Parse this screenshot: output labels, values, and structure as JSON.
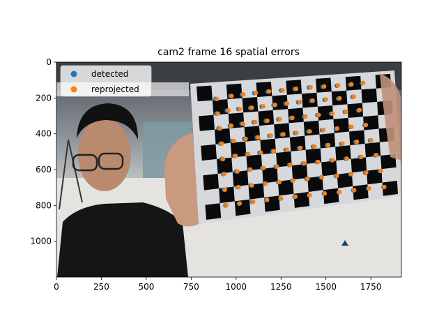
{
  "chart_data": {
    "type": "scatter",
    "title": "cam2 frame 16 spatial errors",
    "xlabel": "",
    "ylabel": "",
    "xlim": [
      0,
      1920
    ],
    "ylim": [
      1200,
      0
    ],
    "xticks": [
      0,
      250,
      500,
      750,
      1000,
      1250,
      1500,
      1750
    ],
    "yticks": [
      0,
      200,
      400,
      600,
      800,
      1000
    ],
    "legend_position": "upper-left",
    "grid": false,
    "background_image": "photo of a person holding a black-and-white checkerboard calibration target",
    "series": [
      {
        "name": "detected",
        "color": "#1f77b4",
        "points": [
          [
            885,
            205
          ],
          [
            967,
            189
          ],
          [
            1032,
            181
          ],
          [
            1100,
            173
          ],
          [
            1175,
            165
          ],
          [
            1250,
            158
          ],
          [
            1325,
            150
          ],
          [
            1405,
            142
          ],
          [
            1482,
            138
          ],
          [
            1560,
            132
          ],
          [
            1635,
            126
          ],
          [
            1700,
            118
          ],
          [
            890,
            287
          ],
          [
            948,
            270
          ],
          [
            1012,
            262
          ],
          [
            1078,
            256
          ],
          [
            1142,
            248
          ],
          [
            1208,
            240
          ],
          [
            1275,
            232
          ],
          [
            1345,
            224
          ],
          [
            1418,
            216
          ],
          [
            1492,
            210
          ],
          [
            1568,
            204
          ],
          [
            1648,
            194
          ],
          [
            902,
            370
          ],
          [
            965,
            355
          ],
          [
            1030,
            344
          ],
          [
            1098,
            336
          ],
          [
            1165,
            328
          ],
          [
            1235,
            320
          ],
          [
            1305,
            312
          ],
          [
            1378,
            304
          ],
          [
            1452,
            296
          ],
          [
            1528,
            288
          ],
          [
            1605,
            278
          ],
          [
            1680,
            270
          ],
          [
            912,
            455
          ],
          [
            978,
            440
          ],
          [
            1045,
            428
          ],
          [
            1115,
            420
          ],
          [
            1185,
            412
          ],
          [
            1255,
            404
          ],
          [
            1328,
            396
          ],
          [
            1402,
            388
          ],
          [
            1478,
            380
          ],
          [
            1555,
            372
          ],
          [
            1635,
            362
          ],
          [
            1715,
            352
          ],
          [
            920,
            540
          ],
          [
            990,
            524
          ],
          [
            1060,
            514
          ],
          [
            1130,
            506
          ],
          [
            1202,
            498
          ],
          [
            1275,
            490
          ],
          [
            1350,
            480
          ],
          [
            1428,
            472
          ],
          [
            1505,
            464
          ],
          [
            1585,
            456
          ],
          [
            1665,
            446
          ],
          [
            1745,
            438
          ],
          [
            928,
            625
          ],
          [
            1000,
            610
          ],
          [
            1072,
            600
          ],
          [
            1145,
            592
          ],
          [
            1220,
            584
          ],
          [
            1295,
            574
          ],
          [
            1372,
            566
          ],
          [
            1450,
            558
          ],
          [
            1530,
            548
          ],
          [
            1610,
            540
          ],
          [
            1690,
            530
          ],
          [
            1775,
            520
          ],
          [
            932,
            712
          ],
          [
            1008,
            698
          ],
          [
            1082,
            688
          ],
          [
            1158,
            678
          ],
          [
            1235,
            670
          ],
          [
            1312,
            662
          ],
          [
            1392,
            652
          ],
          [
            1472,
            644
          ],
          [
            1555,
            636
          ],
          [
            1635,
            626
          ],
          [
            1718,
            618
          ],
          [
            1800,
            608
          ],
          [
            940,
            800
          ],
          [
            1015,
            790
          ],
          [
            1090,
            780
          ],
          [
            1168,
            770
          ],
          [
            1246,
            762
          ],
          [
            1325,
            752
          ],
          [
            1405,
            744
          ],
          [
            1488,
            734
          ],
          [
            1570,
            726
          ],
          [
            1652,
            716
          ],
          [
            1735,
            706
          ],
          [
            1820,
            698
          ]
        ]
      },
      {
        "name": "reprojected",
        "color": "#ff7f0e",
        "points": [
          [
            894,
            206
          ],
          [
            975,
            189
          ],
          [
            1040,
            180
          ],
          [
            1110,
            172
          ],
          [
            1184,
            164
          ],
          [
            1259,
            157
          ],
          [
            1334,
            149
          ],
          [
            1414,
            141
          ],
          [
            1490,
            136
          ],
          [
            1568,
            130
          ],
          [
            1642,
            124
          ],
          [
            1707,
            116
          ],
          [
            898,
            287
          ],
          [
            957,
            270
          ],
          [
            1021,
            262
          ],
          [
            1087,
            255
          ],
          [
            1151,
            247
          ],
          [
            1217,
            239
          ],
          [
            1284,
            231
          ],
          [
            1354,
            223
          ],
          [
            1426,
            215
          ],
          [
            1500,
            208
          ],
          [
            1576,
            202
          ],
          [
            1655,
            193
          ],
          [
            910,
            370
          ],
          [
            973,
            355
          ],
          [
            1039,
            344
          ],
          [
            1106,
            335
          ],
          [
            1174,
            327
          ],
          [
            1243,
            319
          ],
          [
            1313,
            311
          ],
          [
            1386,
            303
          ],
          [
            1460,
            295
          ],
          [
            1536,
            287
          ],
          [
            1612,
            277
          ],
          [
            1687,
            268
          ],
          [
            920,
            455
          ],
          [
            986,
            440
          ],
          [
            1053,
            428
          ],
          [
            1123,
            420
          ],
          [
            1193,
            411
          ],
          [
            1263,
            403
          ],
          [
            1336,
            395
          ],
          [
            1410,
            387
          ],
          [
            1486,
            379
          ],
          [
            1563,
            371
          ],
          [
            1642,
            361
          ],
          [
            1722,
            351
          ],
          [
            927,
            541
          ],
          [
            997,
            524
          ],
          [
            1067,
            514
          ],
          [
            1138,
            506
          ],
          [
            1210,
            497
          ],
          [
            1283,
            489
          ],
          [
            1358,
            479
          ],
          [
            1436,
            471
          ],
          [
            1513,
            463
          ],
          [
            1592,
            455
          ],
          [
            1672,
            445
          ],
          [
            1752,
            437
          ],
          [
            934,
            625
          ],
          [
            1007,
            610
          ],
          [
            1079,
            600
          ],
          [
            1152,
            591
          ],
          [
            1227,
            583
          ],
          [
            1302,
            573
          ],
          [
            1379,
            565
          ],
          [
            1457,
            557
          ],
          [
            1537,
            547
          ],
          [
            1617,
            539
          ],
          [
            1697,
            529
          ],
          [
            1781,
            519
          ],
          [
            938,
            712
          ],
          [
            1014,
            698
          ],
          [
            1088,
            688
          ],
          [
            1164,
            678
          ],
          [
            1241,
            669
          ],
          [
            1318,
            661
          ],
          [
            1398,
            651
          ],
          [
            1478,
            643
          ],
          [
            1561,
            635
          ],
          [
            1641,
            625
          ],
          [
            1724,
            617
          ],
          [
            1806,
            607
          ],
          [
            946,
            799
          ],
          [
            1020,
            789
          ],
          [
            1095,
            779
          ],
          [
            1173,
            769
          ],
          [
            1251,
            761
          ],
          [
            1330,
            751
          ],
          [
            1410,
            743
          ],
          [
            1493,
            733
          ],
          [
            1575,
            725
          ],
          [
            1657,
            715
          ],
          [
            1740,
            705
          ],
          [
            1825,
            697
          ]
        ]
      }
    ]
  }
}
